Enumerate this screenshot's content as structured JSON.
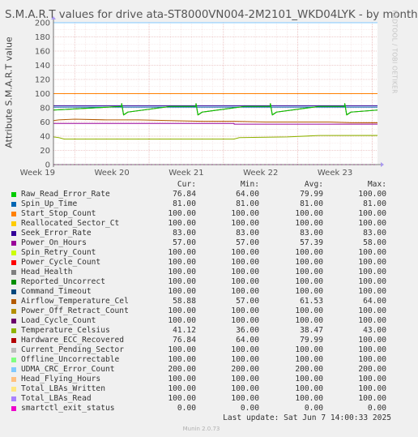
{
  "title": "S.M.A.R.T values for drive ata-ST8000VN004-2M2101_WKD04LYK - by month",
  "watermark": "RRDTOOL / TOBI OETIKER",
  "footer": "Munin 2.0.73",
  "last_update": "Last update: Sat Jun  7 14:00:33 2025",
  "legend_headers": {
    "cur": "Cur:",
    "min": "Min:",
    "avg": "Avg:",
    "max": "Max:"
  },
  "legend": [
    {
      "name": "Raw_Read_Error_Rate",
      "color": "#00cc00",
      "cur": "76.84",
      "min": "64.00",
      "avg": "79.99",
      "max": "100.00"
    },
    {
      "name": "Spin_Up_Time",
      "color": "#0066b3",
      "cur": "81.00",
      "min": "81.00",
      "avg": "81.00",
      "max": "81.00"
    },
    {
      "name": "Start_Stop_Count",
      "color": "#ff8000",
      "cur": "100.00",
      "min": "100.00",
      "avg": "100.00",
      "max": "100.00"
    },
    {
      "name": "Reallocated_Sector_Ct",
      "color": "#ffcc00",
      "cur": "100.00",
      "min": "100.00",
      "avg": "100.00",
      "max": "100.00"
    },
    {
      "name": "Seek_Error_Rate",
      "color": "#330099",
      "cur": "83.00",
      "min": "83.00",
      "avg": "83.00",
      "max": "83.00"
    },
    {
      "name": "Power_On_Hours",
      "color": "#990099",
      "cur": "57.00",
      "min": "57.00",
      "avg": "57.39",
      "max": "58.00"
    },
    {
      "name": "Spin_Retry_Count",
      "color": "#ccff00",
      "cur": "100.00",
      "min": "100.00",
      "avg": "100.00",
      "max": "100.00"
    },
    {
      "name": "Power_Cycle_Count",
      "color": "#ff0000",
      "cur": "100.00",
      "min": "100.00",
      "avg": "100.00",
      "max": "100.00"
    },
    {
      "name": "Head_Health",
      "color": "#808080",
      "cur": "100.00",
      "min": "100.00",
      "avg": "100.00",
      "max": "100.00"
    },
    {
      "name": "Reported_Uncorrect",
      "color": "#008f00",
      "cur": "100.00",
      "min": "100.00",
      "avg": "100.00",
      "max": "100.00"
    },
    {
      "name": "Command_Timeout",
      "color": "#00487d",
      "cur": "100.00",
      "min": "100.00",
      "avg": "100.00",
      "max": "100.00"
    },
    {
      "name": "Airflow_Temperature_Cel",
      "color": "#b35a00",
      "cur": "58.88",
      "min": "57.00",
      "avg": "61.53",
      "max": "64.00"
    },
    {
      "name": "Power_Off_Retract_Count",
      "color": "#b38f00",
      "cur": "100.00",
      "min": "100.00",
      "avg": "100.00",
      "max": "100.00"
    },
    {
      "name": "Load_Cycle_Count",
      "color": "#6b006b",
      "cur": "100.00",
      "min": "100.00",
      "avg": "100.00",
      "max": "100.00"
    },
    {
      "name": "Temperature_Celsius",
      "color": "#8fb300",
      "cur": "41.12",
      "min": "36.00",
      "avg": "38.47",
      "max": "43.00"
    },
    {
      "name": "Hardware_ECC_Recovered",
      "color": "#b30000",
      "cur": "76.84",
      "min": "64.00",
      "avg": "79.99",
      "max": "100.00"
    },
    {
      "name": "Current_Pending_Sector",
      "color": "#bebebe",
      "cur": "100.00",
      "min": "100.00",
      "avg": "100.00",
      "max": "100.00"
    },
    {
      "name": "Offline_Uncorrectable",
      "color": "#80ff80",
      "cur": "100.00",
      "min": "100.00",
      "avg": "100.00",
      "max": "100.00"
    },
    {
      "name": "UDMA_CRC_Error_Count",
      "color": "#80c9ff",
      "cur": "200.00",
      "min": "200.00",
      "avg": "200.00",
      "max": "200.00"
    },
    {
      "name": "Head_Flying_Hours",
      "color": "#ffc080",
      "cur": "100.00",
      "min": "100.00",
      "avg": "100.00",
      "max": "100.00"
    },
    {
      "name": "Total_LBAs_Written",
      "color": "#ffe680",
      "cur": "100.00",
      "min": "100.00",
      "avg": "100.00",
      "max": "100.00"
    },
    {
      "name": "Total_LBAs_Read",
      "color": "#aa80ff",
      "cur": "100.00",
      "min": "100.00",
      "avg": "100.00",
      "max": "100.00"
    },
    {
      "name": "smartctl_exit_status",
      "color": "#ee00cc",
      "cur": "0.00",
      "min": "0.00",
      "avg": "0.00",
      "max": "0.00"
    }
  ],
  "chart_data": {
    "type": "line",
    "title": "S.M.A.R.T values for drive ata-ST8000VN004-2M2101_WKD04LYK - by month",
    "ylabel": "Attribute S.M.A.R.T value",
    "xlabel": "",
    "ylim": [
      0,
      200
    ],
    "yticks": [
      0,
      20,
      40,
      60,
      80,
      100,
      120,
      140,
      160,
      180,
      200
    ],
    "xticks": [
      "Week 19",
      "Week 20",
      "Week 21",
      "Week 22",
      "Week 23"
    ],
    "xlim": [
      0,
      30.5
    ],
    "xtick_positions": [
      2,
      9,
      16,
      23,
      30
    ],
    "grid": true,
    "series": [
      {
        "name": "Raw_Read_Error_Rate",
        "color": "#00cc00",
        "x": [
          0,
          6.4,
          6.42,
          6.6,
          7,
          11,
          13.4,
          13.42,
          13.6,
          14,
          18,
          20.4,
          20.42,
          20.6,
          21,
          25,
          27.4,
          27.42,
          27.6,
          28,
          30.5
        ],
        "y": [
          76.84,
          82,
          86,
          70,
          74,
          82,
          82,
          86,
          70,
          74,
          82,
          82,
          86,
          70,
          74,
          82,
          82,
          86,
          70,
          74,
          76.84
        ]
      },
      {
        "name": "Spin_Up_Time",
        "color": "#0066b3",
        "x": [
          0,
          30.5
        ],
        "y": [
          81,
          81
        ]
      },
      {
        "name": "Start_Stop_Count",
        "color": "#ff8000",
        "x": [
          0,
          30.5
        ],
        "y": [
          100,
          100
        ]
      },
      {
        "name": "Reallocated_Sector_Ct",
        "color": "#ffcc00",
        "x": [
          0,
          30.5
        ],
        "y": [
          100,
          100
        ]
      },
      {
        "name": "Seek_Error_Rate",
        "color": "#330099",
        "x": [
          0,
          30.5
        ],
        "y": [
          83,
          83
        ]
      },
      {
        "name": "Power_On_Hours",
        "color": "#990099",
        "x": [
          0,
          17,
          17.01,
          30.5
        ],
        "y": [
          58,
          58,
          57,
          57
        ]
      },
      {
        "name": "Spin_Retry_Count",
        "color": "#ccff00",
        "x": [
          0,
          30.5
        ],
        "y": [
          100,
          100
        ]
      },
      {
        "name": "Power_Cycle_Count",
        "color": "#ff0000",
        "x": [
          0,
          30.5
        ],
        "y": [
          100,
          100
        ]
      },
      {
        "name": "Head_Health",
        "color": "#808080",
        "x": [
          0,
          30.5
        ],
        "y": [
          100,
          100
        ]
      },
      {
        "name": "Reported_Uncorrect",
        "color": "#008f00",
        "x": [
          0,
          30.5
        ],
        "y": [
          100,
          100
        ]
      },
      {
        "name": "Command_Timeout",
        "color": "#00487d",
        "x": [
          0,
          30.5
        ],
        "y": [
          100,
          100
        ]
      },
      {
        "name": "Airflow_Temperature_Cel",
        "color": "#b35a00",
        "x": [
          0,
          0.5,
          2,
          5,
          8,
          11,
          14,
          17,
          20,
          23,
          26,
          28,
          30.5
        ],
        "y": [
          62,
          63,
          64,
          63,
          63,
          62,
          61,
          61,
          60,
          60,
          60,
          59,
          58.88
        ]
      },
      {
        "name": "Power_Off_Retract_Count",
        "color": "#b38f00",
        "x": [
          0,
          30.5
        ],
        "y": [
          100,
          100
        ]
      },
      {
        "name": "Load_Cycle_Count",
        "color": "#6b006b",
        "x": [
          0,
          30.5
        ],
        "y": [
          100,
          100
        ]
      },
      {
        "name": "Temperature_Celsius",
        "color": "#8fb300",
        "x": [
          0,
          0.5,
          1,
          17,
          17.5,
          22,
          25,
          30.5
        ],
        "y": [
          39,
          38,
          36,
          36,
          38,
          39,
          41,
          41.12
        ]
      },
      {
        "name": "Hardware_ECC_Recovered",
        "color": "#b30000",
        "x": [
          0,
          6.4,
          6.42,
          6.6,
          7,
          11,
          13.4,
          13.42,
          13.6,
          14,
          18,
          20.4,
          20.42,
          20.6,
          21,
          25,
          27.4,
          27.42,
          27.6,
          28,
          30.5
        ],
        "y": [
          76.84,
          82,
          86,
          70,
          74,
          82,
          82,
          86,
          70,
          74,
          82,
          82,
          86,
          70,
          74,
          82,
          82,
          86,
          70,
          74,
          76.84
        ]
      },
      {
        "name": "Current_Pending_Sector",
        "color": "#bebebe",
        "x": [
          0,
          30.5
        ],
        "y": [
          100,
          100
        ]
      },
      {
        "name": "Offline_Uncorrectable",
        "color": "#80ff80",
        "x": [
          0,
          30.5
        ],
        "y": [
          100,
          100
        ]
      },
      {
        "name": "UDMA_CRC_Error_Count",
        "color": "#80c9ff",
        "x": [
          0,
          30.5
        ],
        "y": [
          200,
          200
        ]
      },
      {
        "name": "Head_Flying_Hours",
        "color": "#ffc080",
        "x": [
          0,
          30.5
        ],
        "y": [
          100,
          100
        ]
      },
      {
        "name": "Total_LBAs_Written",
        "color": "#ffe680",
        "x": [
          0,
          30.5
        ],
        "y": [
          100,
          100
        ]
      },
      {
        "name": "Total_LBAs_Read",
        "color": "#aa80ff",
        "x": [
          0,
          30.5
        ],
        "y": [
          100,
          100
        ]
      },
      {
        "name": "smartctl_exit_status",
        "color": "#ee00cc",
        "x": [
          0,
          30.5
        ],
        "y": [
          0,
          0
        ],
        "dashed": true
      }
    ]
  }
}
